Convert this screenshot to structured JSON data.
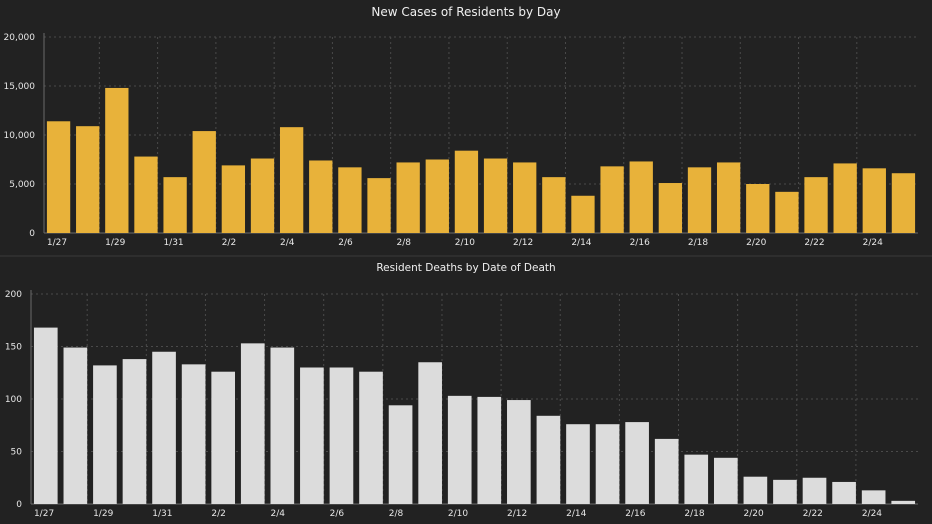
{
  "colors": {
    "background": "#222222",
    "grid": "#4a4a4a",
    "axis": "#6a6a6a",
    "cases_bar": "#e8b23a",
    "deaths_bar": "#dcdcdc",
    "text": "#f0f0f0"
  },
  "chart_data": [
    {
      "type": "bar",
      "title": "New Cases of Residents by Day",
      "xlabel": "",
      "ylabel": "",
      "ylim": [
        0,
        20000
      ],
      "yticks": [
        0,
        5000,
        10000,
        15000,
        20000
      ],
      "ytick_labels": [
        "0",
        "5,000",
        "10,000",
        "15,000",
        "20,000"
      ],
      "categories": [
        "1/27",
        "1/28",
        "1/29",
        "1/30",
        "1/31",
        "2/1",
        "2/2",
        "2/3",
        "2/4",
        "2/5",
        "2/6",
        "2/7",
        "2/8",
        "2/9",
        "2/10",
        "2/11",
        "2/12",
        "2/13",
        "2/14",
        "2/15",
        "2/16",
        "2/17",
        "2/18",
        "2/19",
        "2/20",
        "2/21",
        "2/22",
        "2/23",
        "2/24",
        "2/25"
      ],
      "xtick_labels": [
        "1/27",
        "",
        "1/29",
        "",
        "1/31",
        "",
        "2/2",
        "",
        "2/4",
        "",
        "2/6",
        "",
        "2/8",
        "",
        "2/10",
        "",
        "2/12",
        "",
        "2/14",
        "",
        "2/16",
        "",
        "2/18",
        "",
        "2/20",
        "",
        "2/22",
        "",
        "2/24",
        ""
      ],
      "values": [
        11400,
        10900,
        14800,
        7800,
        5700,
        10400,
        6900,
        7600,
        10800,
        7400,
        6700,
        5600,
        7200,
        7500,
        8400,
        7600,
        7200,
        5700,
        3800,
        6800,
        7300,
        5100,
        6700,
        7200,
        5000,
        4200,
        5700,
        7100,
        6600,
        6100
      ],
      "grid": true
    },
    {
      "type": "bar",
      "title": "Resident Deaths by Date of Death",
      "xlabel": "",
      "ylabel": "",
      "ylim": [
        0,
        200
      ],
      "yticks": [
        0,
        50,
        100,
        150,
        200
      ],
      "ytick_labels": [
        "0",
        "50",
        "100",
        "150",
        "200"
      ],
      "categories": [
        "1/27",
        "1/28",
        "1/29",
        "1/30",
        "1/31",
        "2/1",
        "2/2",
        "2/3",
        "2/4",
        "2/5",
        "2/6",
        "2/7",
        "2/8",
        "2/9",
        "2/10",
        "2/11",
        "2/12",
        "2/13",
        "2/14",
        "2/15",
        "2/16",
        "2/17",
        "2/18",
        "2/19",
        "2/20",
        "2/21",
        "2/22",
        "2/23",
        "2/24",
        "2/25"
      ],
      "xtick_labels": [
        "1/27",
        "",
        "1/29",
        "",
        "1/31",
        "",
        "2/2",
        "",
        "2/4",
        "",
        "2/6",
        "",
        "2/8",
        "",
        "2/10",
        "",
        "2/12",
        "",
        "2/14",
        "",
        "2/16",
        "",
        "2/18",
        "",
        "2/20",
        "",
        "2/22",
        "",
        "2/24",
        ""
      ],
      "values": [
        168,
        149,
        132,
        138,
        145,
        133,
        126,
        153,
        149,
        130,
        130,
        126,
        94,
        135,
        103,
        102,
        99,
        84,
        76,
        76,
        78,
        62,
        47,
        44,
        26,
        23,
        25,
        21,
        13,
        3
      ],
      "grid": true
    }
  ]
}
